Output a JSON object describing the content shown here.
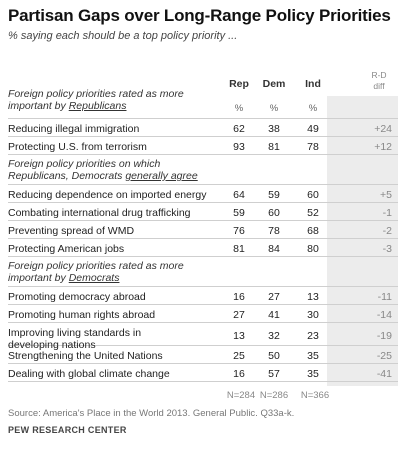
{
  "chart_data": {
    "type": "table",
    "title": "Partisan Gaps over Long-Range  Policy Priorities",
    "subtitle": "% saying each should be a top policy priority ...",
    "columns": [
      "Rep",
      "Dem",
      "Ind",
      "R-D diff"
    ],
    "column_units": [
      "%",
      "%",
      "%"
    ],
    "sections": [
      {
        "heading_pre": "Foreign policy priorities rated as more important by ",
        "heading_em": "Republicans",
        "show_units": true,
        "rows": [
          {
            "label": "Reducing illegal immigration",
            "rep": "62",
            "dem": "38",
            "ind": "49",
            "diff": "+24"
          },
          {
            "label": "Protecting U.S. from terrorism",
            "rep": "93",
            "dem": "81",
            "ind": "78",
            "diff": "+12"
          }
        ]
      },
      {
        "heading_pre": "Foreign policy priorities on which Republicans, Democrats ",
        "heading_em": "generally agree",
        "show_units": false,
        "rows": [
          {
            "label": "Reducing dependence on imported energy",
            "rep": "64",
            "dem": "59",
            "ind": "60",
            "diff": "+5"
          },
          {
            "label": "Combating international drug trafficking",
            "rep": "59",
            "dem": "60",
            "ind": "52",
            "diff": "-1"
          },
          {
            "label": "Preventing spread of WMD",
            "rep": "76",
            "dem": "78",
            "ind": "68",
            "diff": "-2"
          },
          {
            "label": "Protecting American jobs",
            "rep": "81",
            "dem": "84",
            "ind": "80",
            "diff": "-3"
          }
        ]
      },
      {
        "heading_pre": "Foreign policy priorities rated as more important by ",
        "heading_em": "Democrats",
        "show_units": false,
        "rows": [
          {
            "label": "Promoting democracy abroad",
            "rep": "16",
            "dem": "27",
            "ind": "13",
            "diff": "-11"
          },
          {
            "label": "Promoting human rights abroad",
            "rep": "27",
            "dem": "41",
            "ind": "30",
            "diff": "-14"
          },
          {
            "label": "Improving living standards in developing nations",
            "rep": "13",
            "dem": "32",
            "ind": "23",
            "diff": "-19"
          },
          {
            "label": "Strengthening the United Nations",
            "rep": "25",
            "dem": "50",
            "ind": "35",
            "diff": "-25"
          },
          {
            "label": "Dealing with global climate change",
            "rep": "16",
            "dem": "57",
            "ind": "35",
            "diff": "-41"
          }
        ]
      }
    ],
    "sample_sizes": [
      "N=284",
      "N=286",
      "N=366"
    ]
  },
  "footer": {
    "source": "Source: America's Place in the World 2013. General Public. Q33a-k.",
    "brand": "PEW RESEARCH CENTER"
  },
  "colors": {
    "diff_band": "#ececec",
    "rule": "#cfcfcf"
  }
}
